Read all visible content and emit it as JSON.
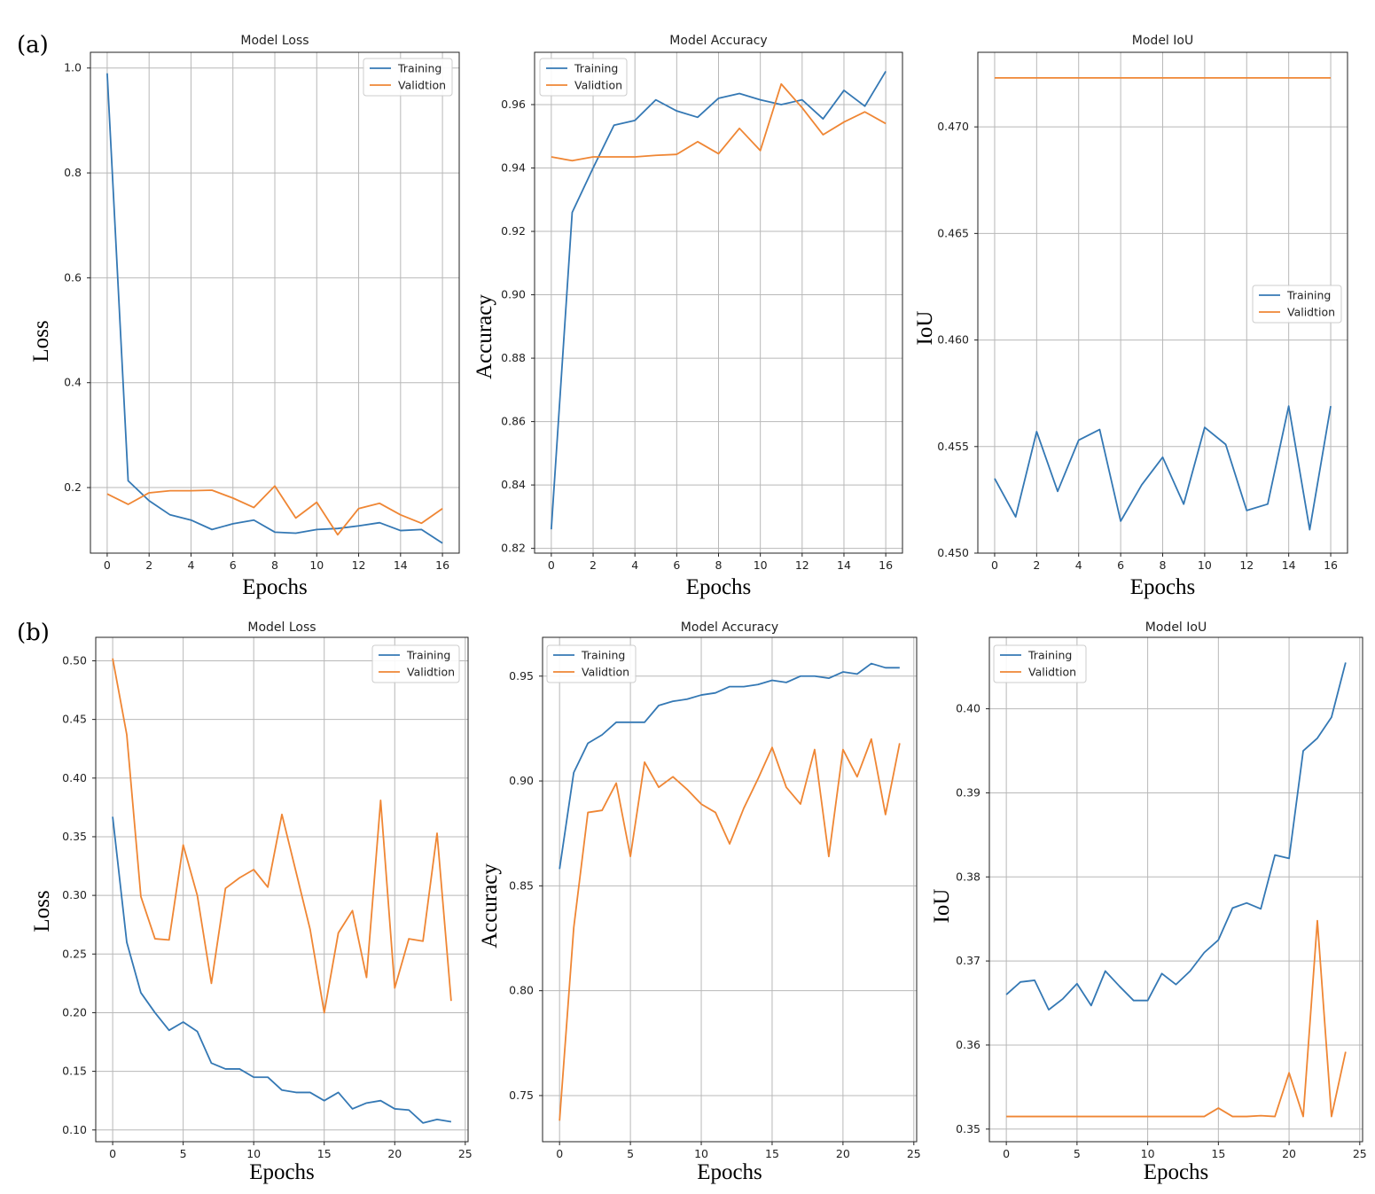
{
  "row_labels": [
    "(a)",
    "(b)"
  ],
  "colors": {
    "training": "#3478b4",
    "validation": "#ef8634"
  },
  "chart_data": [
    {
      "type": "line",
      "title": "Model Loss",
      "xlabel": "Epochs",
      "ylabel": "Loss",
      "xlim": [
        -0.8,
        16.8
      ],
      "ylim": [
        0.075,
        1.03
      ],
      "xticks": [
        0,
        2,
        4,
        6,
        8,
        10,
        12,
        14,
        16
      ],
      "yticks": [
        0.2,
        0.4,
        0.6,
        0.8,
        1.0
      ],
      "ytick_labels": [
        "0.2",
        "0.4",
        "0.6",
        "0.8",
        "1.0"
      ],
      "grid": true,
      "legend": "top-right",
      "x": [
        0,
        1,
        2,
        3,
        4,
        5,
        6,
        7,
        8,
        9,
        10,
        11,
        12,
        13,
        14,
        15,
        16
      ],
      "series": [
        {
          "name": "Training",
          "values": [
            0.99,
            0.213,
            0.175,
            0.148,
            0.138,
            0.12,
            0.131,
            0.138,
            0.115,
            0.113,
            0.12,
            0.122,
            0.127,
            0.133,
            0.118,
            0.12,
            0.094
          ]
        },
        {
          "name": "Validtion",
          "values": [
            0.188,
            0.168,
            0.19,
            0.194,
            0.194,
            0.195,
            0.18,
            0.162,
            0.203,
            0.142,
            0.172,
            0.11,
            0.16,
            0.17,
            0.148,
            0.132,
            0.16
          ]
        }
      ]
    },
    {
      "type": "line",
      "title": "Model Accuracy",
      "xlabel": "Epochs",
      "ylabel": "Accuracy",
      "xlim": [
        -0.8,
        16.8
      ],
      "ylim": [
        0.8185,
        0.9765
      ],
      "xticks": [
        0,
        2,
        4,
        6,
        8,
        10,
        12,
        14,
        16
      ],
      "yticks": [
        0.82,
        0.84,
        0.86,
        0.88,
        0.9,
        0.92,
        0.94,
        0.96
      ],
      "ytick_labels": [
        "0.82",
        "0.84",
        "0.86",
        "0.88",
        "0.90",
        "0.92",
        "0.94",
        "0.96"
      ],
      "grid": true,
      "legend": "top-left",
      "x": [
        0,
        1,
        2,
        3,
        4,
        5,
        6,
        7,
        8,
        9,
        10,
        11,
        12,
        13,
        14,
        15,
        16
      ],
      "series": [
        {
          "name": "Training",
          "values": [
            0.826,
            0.926,
            0.94,
            0.9535,
            0.955,
            0.9615,
            0.958,
            0.956,
            0.962,
            0.9635,
            0.9615,
            0.96,
            0.9615,
            0.9555,
            0.9645,
            0.9595,
            0.9705
          ]
        },
        {
          "name": "Validtion",
          "values": [
            0.9435,
            0.9423,
            0.9435,
            0.9435,
            0.9435,
            0.944,
            0.9443,
            0.9483,
            0.9445,
            0.9525,
            0.9455,
            0.9665,
            0.959,
            0.9505,
            0.9545,
            0.9577,
            0.954
          ]
        }
      ]
    },
    {
      "type": "line",
      "title": "Model IoU",
      "xlabel": "Epochs",
      "ylabel": "IoU",
      "xlim": [
        -0.8,
        16.8
      ],
      "ylim": [
        0.45,
        0.4735
      ],
      "xticks": [
        0,
        2,
        4,
        6,
        8,
        10,
        12,
        14,
        16
      ],
      "yticks": [
        0.45,
        0.455,
        0.46,
        0.465,
        0.47
      ],
      "ytick_labels": [
        "0.450",
        "0.455",
        "0.460",
        "0.465",
        "0.470"
      ],
      "grid": true,
      "legend": "center-right",
      "x": [
        0,
        1,
        2,
        3,
        4,
        5,
        6,
        7,
        8,
        9,
        10,
        11,
        12,
        13,
        14,
        15,
        16
      ],
      "series": [
        {
          "name": "Training",
          "values": [
            0.4535,
            0.4517,
            0.4557,
            0.4529,
            0.4553,
            0.4558,
            0.4515,
            0.4532,
            0.4545,
            0.4523,
            0.4559,
            0.4551,
            0.452,
            0.4523,
            0.4569,
            0.4511,
            0.4569
          ]
        },
        {
          "name": "Validtion",
          "values": [
            0.4723,
            0.4723,
            0.4723,
            0.4723,
            0.4723,
            0.4723,
            0.4723,
            0.4723,
            0.4723,
            0.4723,
            0.4723,
            0.4723,
            0.4723,
            0.4723,
            0.4723,
            0.4723,
            0.4723
          ]
        }
      ]
    },
    {
      "type": "line",
      "title": "Model Loss",
      "xlabel": "Epochs",
      "ylabel": "Loss",
      "xlim": [
        -1.2,
        25.2
      ],
      "ylim": [
        0.09,
        0.52
      ],
      "xticks": [
        0,
        5,
        10,
        15,
        20,
        25
      ],
      "yticks": [
        0.1,
        0.15,
        0.2,
        0.25,
        0.3,
        0.35,
        0.4,
        0.45,
        0.5
      ],
      "ytick_labels": [
        "0.10",
        "0.15",
        "0.20",
        "0.25",
        "0.30",
        "0.35",
        "0.40",
        "0.45",
        "0.50"
      ],
      "grid": true,
      "legend": "top-right",
      "x": [
        0,
        1,
        2,
        3,
        4,
        5,
        6,
        7,
        8,
        9,
        10,
        11,
        12,
        13,
        14,
        15,
        16,
        17,
        18,
        19,
        20,
        21,
        22,
        23,
        24
      ],
      "series": [
        {
          "name": "Training",
          "values": [
            0.367,
            0.26,
            0.217,
            0.2,
            0.185,
            0.192,
            0.184,
            0.157,
            0.152,
            0.152,
            0.145,
            0.145,
            0.134,
            0.132,
            0.132,
            0.125,
            0.132,
            0.118,
            0.123,
            0.125,
            0.118,
            0.117,
            0.106,
            0.109,
            0.107
          ]
        },
        {
          "name": "Validtion",
          "values": [
            0.502,
            0.437,
            0.299,
            0.263,
            0.262,
            0.343,
            0.3,
            0.225,
            0.306,
            0.315,
            0.322,
            0.307,
            0.369,
            0.32,
            0.271,
            0.2,
            0.268,
            0.287,
            0.23,
            0.381,
            0.221,
            0.263,
            0.261,
            0.353,
            0.21
          ]
        }
      ]
    },
    {
      "type": "line",
      "title": "Model Accuracy",
      "xlabel": "Epochs",
      "ylabel": "Accuracy",
      "xlim": [
        -1.2,
        25.2
      ],
      "ylim": [
        0.728,
        0.9685
      ],
      "xticks": [
        0,
        5,
        10,
        15,
        20,
        25
      ],
      "yticks": [
        0.75,
        0.8,
        0.85,
        0.9,
        0.95
      ],
      "ytick_labels": [
        "0.75",
        "0.80",
        "0.85",
        "0.90",
        "0.95"
      ],
      "grid": true,
      "legend": "top-left",
      "x": [
        0,
        1,
        2,
        3,
        4,
        5,
        6,
        7,
        8,
        9,
        10,
        11,
        12,
        13,
        14,
        15,
        16,
        17,
        18,
        19,
        20,
        21,
        22,
        23,
        24
      ],
      "series": [
        {
          "name": "Training",
          "values": [
            0.858,
            0.904,
            0.918,
            0.922,
            0.928,
            0.928,
            0.928,
            0.936,
            0.938,
            0.939,
            0.941,
            0.942,
            0.945,
            0.945,
            0.946,
            0.948,
            0.947,
            0.95,
            0.95,
            0.949,
            0.952,
            0.951,
            0.956,
            0.954,
            0.954
          ]
        },
        {
          "name": "Validtion",
          "values": [
            0.738,
            0.83,
            0.885,
            0.886,
            0.899,
            0.864,
            0.909,
            0.897,
            0.902,
            0.896,
            0.889,
            0.885,
            0.87,
            0.887,
            0.901,
            0.916,
            0.897,
            0.889,
            0.915,
            0.864,
            0.915,
            0.902,
            0.92,
            0.884,
            0.918
          ]
        }
      ]
    },
    {
      "type": "line",
      "title": "Model IoU",
      "xlabel": "Epochs",
      "ylabel": "IoU",
      "xlim": [
        -1.2,
        25.2
      ],
      "ylim": [
        0.3485,
        0.4085
      ],
      "xticks": [
        0,
        5,
        10,
        15,
        20,
        25
      ],
      "yticks": [
        0.35,
        0.36,
        0.37,
        0.38,
        0.39,
        0.4
      ],
      "ytick_labels": [
        "0.35",
        "0.36",
        "0.37",
        "0.38",
        "0.39",
        "0.40"
      ],
      "grid": true,
      "legend": "top-left",
      "x": [
        0,
        1,
        2,
        3,
        4,
        5,
        6,
        7,
        8,
        9,
        10,
        11,
        12,
        13,
        14,
        15,
        16,
        17,
        18,
        19,
        20,
        21,
        22,
        23,
        24
      ],
      "series": [
        {
          "name": "Training",
          "values": [
            0.366,
            0.3675,
            0.3677,
            0.3642,
            0.3655,
            0.3673,
            0.3647,
            0.3688,
            0.367,
            0.3653,
            0.3653,
            0.3685,
            0.3672,
            0.3688,
            0.371,
            0.3725,
            0.3763,
            0.3769,
            0.3762,
            0.3826,
            0.3822,
            0.395,
            0.3965,
            0.399,
            0.4055
          ]
        },
        {
          "name": "Validtion",
          "values": [
            0.3515,
            0.3515,
            0.3515,
            0.3515,
            0.3515,
            0.3515,
            0.3515,
            0.3515,
            0.3515,
            0.3515,
            0.3515,
            0.3515,
            0.3515,
            0.3515,
            0.3515,
            0.3525,
            0.3515,
            0.3515,
            0.3516,
            0.3515,
            0.3567,
            0.3515,
            0.3748,
            0.3515,
            0.3592
          ]
        }
      ]
    }
  ]
}
